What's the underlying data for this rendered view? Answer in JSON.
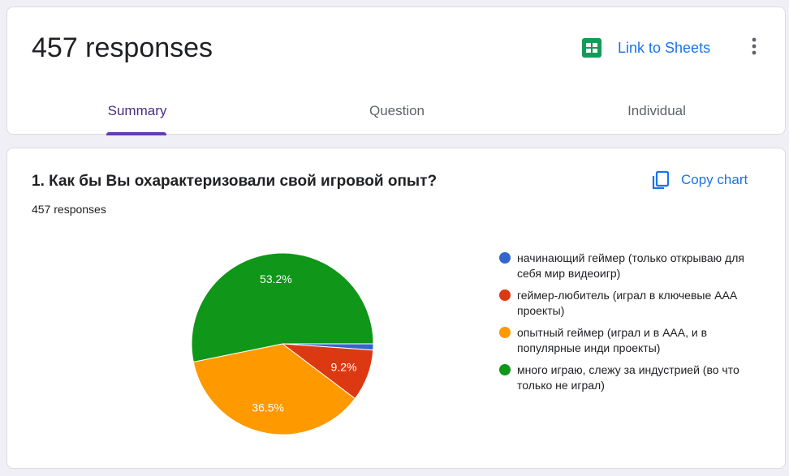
{
  "header": {
    "responses_title": "457 responses",
    "sheets_label": "Link to Sheets",
    "tabs": [
      {
        "label": "Summary"
      },
      {
        "label": "Question"
      },
      {
        "label": "Individual"
      }
    ]
  },
  "question": {
    "title": "1. Как бы Вы охарактеризовали свой игровой опыт?",
    "count": "457 responses",
    "copy_label": "Copy chart"
  },
  "colors": {
    "accent": "#673ab7",
    "link": "#1a73e8",
    "sheets_green": "#0f9d58"
  },
  "chart_data": {
    "type": "pie",
    "categories": [
      "начинающий геймер (только открываю для себя мир видеоигр)",
      "геймер-любитель (играл в ключевые AAA проекты)",
      "опытный геймер (играл и в AAA, и в популярные инди проекты)",
      "много играю, слежу за индустрией (во что только не играл)"
    ],
    "values": [
      1.1,
      9.2,
      36.5,
      53.2
    ],
    "value_labels": [
      "",
      "9.2%",
      "36.5%",
      "53.2%"
    ],
    "colors": [
      "#3366cc",
      "#dc3912",
      "#ff9900",
      "#109618"
    ],
    "legend_position": "right"
  }
}
